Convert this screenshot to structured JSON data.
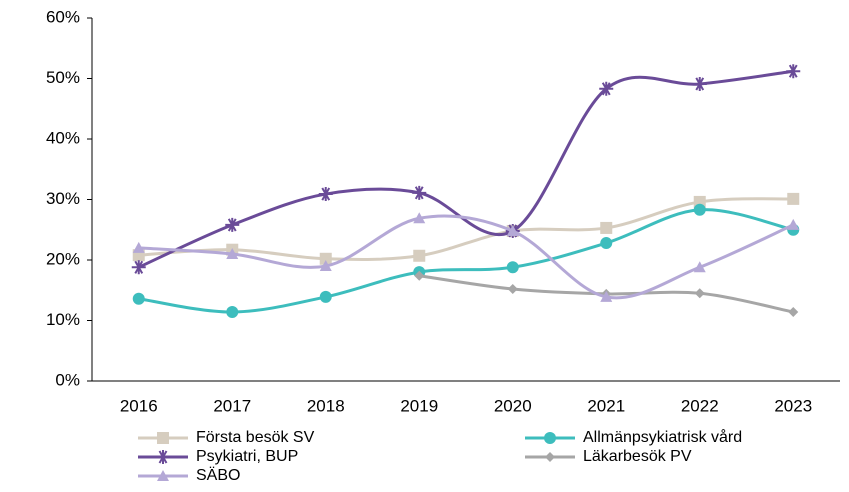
{
  "chart_data": {
    "type": "line",
    "categories": [
      "2016",
      "2017",
      "2018",
      "2019",
      "2020",
      "2021",
      "2022",
      "2023"
    ],
    "ylim": [
      0,
      60
    ],
    "yticks": [
      {
        "value": 0,
        "label": "0%"
      },
      {
        "value": 10,
        "label": "10%"
      },
      {
        "value": 20,
        "label": "20%"
      },
      {
        "value": 30,
        "label": "30%"
      },
      {
        "value": 40,
        "label": "40%"
      },
      {
        "value": 50,
        "label": "50%"
      },
      {
        "value": 60,
        "label": "60%"
      }
    ],
    "smooth": true,
    "legend": "bottom",
    "series": [
      {
        "name": "Första besök SV",
        "color": "#d6cdbf",
        "marker": "square",
        "values": [
          20.8,
          21.7,
          20.2,
          20.7,
          24.8,
          25.3,
          29.6,
          30.1
        ]
      },
      {
        "name": "Allmänpsykiatrisk vård",
        "color": "#3dbdbd",
        "marker": "circle",
        "values": [
          13.6,
          11.4,
          13.9,
          18.0,
          18.8,
          22.8,
          28.3,
          25.0
        ]
      },
      {
        "name": "Psykiatri, BUP",
        "color": "#6a4b98",
        "marker": "star",
        "values": [
          18.8,
          25.8,
          30.9,
          31.1,
          24.8,
          48.3,
          49.1,
          51.2
        ]
      },
      {
        "name": "Läkarbesök PV",
        "color": "#a6a6a6",
        "marker": "diamond",
        "values": [
          null,
          null,
          null,
          17.4,
          15.2,
          14.4,
          14.5,
          11.4
        ]
      },
      {
        "name": "SÄBO",
        "color": "#b4a8d6",
        "marker": "triangle",
        "values": [
          22.0,
          21.0,
          19.0,
          26.9,
          24.8,
          13.9,
          18.8,
          25.8
        ]
      }
    ]
  }
}
